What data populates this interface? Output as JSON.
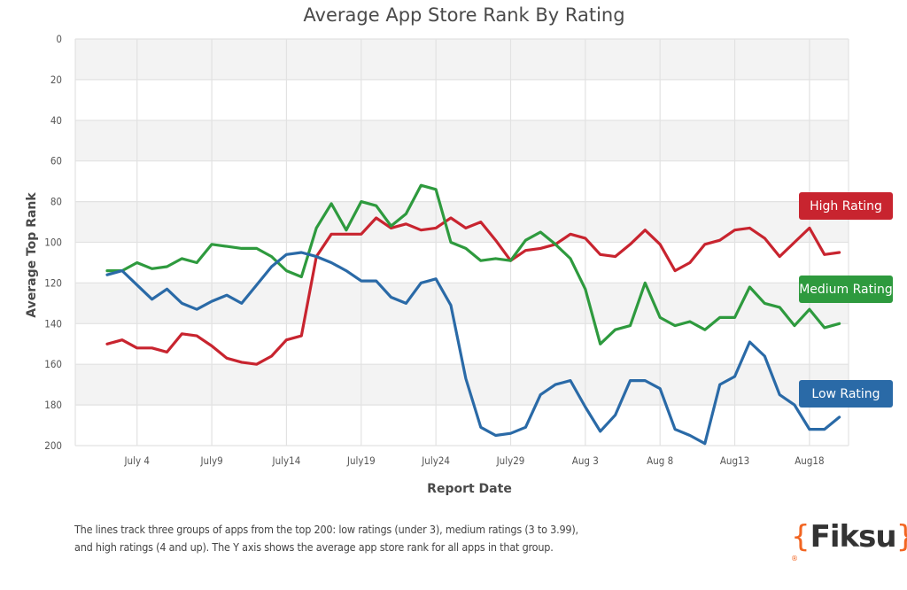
{
  "chart_data": {
    "type": "line",
    "title": "Average App Store Rank By Rating",
    "xlabel": "Report Date",
    "ylabel": "Average Top Rank",
    "ylim": [
      0,
      200
    ],
    "y_inverted": true,
    "y_ticks": [
      "0",
      "20",
      "40",
      "60",
      "80",
      "100",
      "120",
      "140",
      "160",
      "180",
      "200"
    ],
    "x_tick_labels": [
      {
        "day_index": 2,
        "label": "July 4"
      },
      {
        "day_index": 7,
        "label": "July9"
      },
      {
        "day_index": 12,
        "label": "July14"
      },
      {
        "day_index": 17,
        "label": "July19"
      },
      {
        "day_index": 22,
        "label": "July24"
      },
      {
        "day_index": 27,
        "label": "July29"
      },
      {
        "day_index": 32,
        "label": "Aug 3"
      },
      {
        "day_index": 37,
        "label": "Aug 8"
      },
      {
        "day_index": 42,
        "label": "Aug13"
      },
      {
        "day_index": 47,
        "label": "Aug18"
      }
    ],
    "x_range_days": [
      0,
      49
    ],
    "x_start_date": "July 2",
    "grid": true,
    "legend_placement": "right",
    "series": [
      {
        "name": "High Rating",
        "color": "#c8242f",
        "values": [
          150,
          148,
          152,
          152,
          154,
          145,
          146,
          151,
          157,
          159,
          160,
          156,
          148,
          146,
          107,
          96,
          96,
          96,
          88,
          93,
          91,
          94,
          93,
          88,
          93,
          90,
          99,
          109,
          104,
          103,
          101,
          96,
          98,
          106,
          107,
          101,
          94,
          101,
          114,
          110,
          101,
          99,
          94,
          93,
          98,
          107,
          100,
          93,
          106,
          105
        ]
      },
      {
        "name": "Medium Rating",
        "color": "#2e9a3e",
        "values": [
          114,
          114,
          110,
          113,
          112,
          108,
          110,
          101,
          102,
          103,
          103,
          107,
          114,
          117,
          93,
          81,
          94,
          80,
          82,
          92,
          86,
          72,
          74,
          100,
          103,
          109,
          108,
          109,
          99,
          95,
          101,
          108,
          123,
          150,
          143,
          141,
          120,
          137,
          141,
          139,
          143,
          137,
          137,
          122,
          130,
          132,
          141,
          133,
          142,
          140
        ]
      },
      {
        "name": "Low Rating",
        "color": "#2a6aa7",
        "values": [
          116,
          114,
          121,
          128,
          123,
          130,
          133,
          129,
          126,
          130,
          121,
          112,
          106,
          105,
          107,
          110,
          114,
          119,
          119,
          127,
          130,
          120,
          118,
          131,
          167,
          191,
          195,
          194,
          191,
          175,
          170,
          168,
          181,
          193,
          185,
          168,
          168,
          172,
          192,
          195,
          199,
          170,
          166,
          149,
          156,
          175,
          180,
          192,
          192,
          186
        ]
      }
    ]
  },
  "legend": {
    "high_label": "High Rating",
    "medium_label": "Medium Rating",
    "low_label": "Low Rating"
  },
  "footnote": {
    "line1": "The lines track three groups of apps from the top 200: low ratings (under 3), medium ratings (3 to 3.99),",
    "line2": "and high ratings (4 and up). The Y axis shows the average app store rank for all apps in that group."
  },
  "logo": {
    "open_brace": "{",
    "word": "Fiksu",
    "close_brace": "}",
    "reg": "®"
  }
}
